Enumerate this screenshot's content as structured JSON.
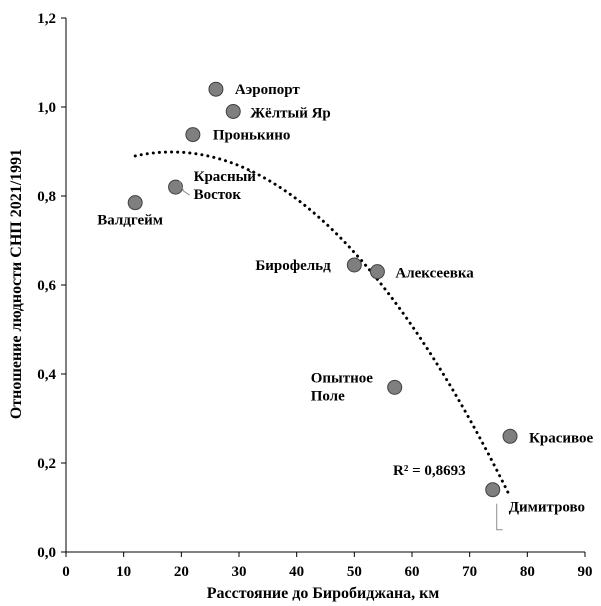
{
  "chart_data": {
    "type": "scatter",
    "xlabel": "Расстояние до Биробиджана, км",
    "ylabel": "Отношение людности СНП 2021/1991",
    "xlim": [
      0,
      90
    ],
    "ylim": [
      0,
      1.2
    ],
    "x_ticks": [
      0,
      10,
      20,
      30,
      40,
      50,
      60,
      70,
      80,
      90
    ],
    "y_ticks": [
      0,
      0.2,
      0.4,
      0.6,
      0.8,
      1.0,
      1.2
    ],
    "x_tick_labels": [
      "0",
      "10",
      "20",
      "30",
      "40",
      "50",
      "60",
      "70",
      "80",
      "90"
    ],
    "y_tick_labels": [
      "0,0",
      "0,2",
      "0,4",
      "0,6",
      "0,8",
      "1,0",
      "1,2"
    ],
    "grid": false,
    "marker_color": "#7f7f7f",
    "points": [
      {
        "x": 12,
        "y": 0.785,
        "label": [
          "Валдгейм"
        ]
      },
      {
        "x": 19,
        "y": 0.82,
        "label": [
          "Красный",
          "Восток"
        ]
      },
      {
        "x": 22,
        "y": 0.938,
        "label": [
          "Пронькино"
        ]
      },
      {
        "x": 26,
        "y": 1.04,
        "label": [
          "Аэропорт"
        ]
      },
      {
        "x": 29,
        "y": 0.99,
        "label": [
          "Жёлтый Яр"
        ]
      },
      {
        "x": 50,
        "y": 0.645,
        "label": [
          "Бирофельд"
        ]
      },
      {
        "x": 54,
        "y": 0.63,
        "label": [
          "Алексеевка"
        ]
      },
      {
        "x": 57,
        "y": 0.37,
        "label": [
          "Опытное",
          "Поле"
        ]
      },
      {
        "x": 74,
        "y": 0.14,
        "label": [
          "Димитрово"
        ]
      },
      {
        "x": 77,
        "y": 0.26,
        "label": [
          "Красивое"
        ]
      }
    ],
    "trendline": {
      "type": "polynomial",
      "order": 2,
      "style": "dotted",
      "x_range": [
        12,
        77
      ],
      "r2_label": "R² = 0,8693"
    }
  }
}
